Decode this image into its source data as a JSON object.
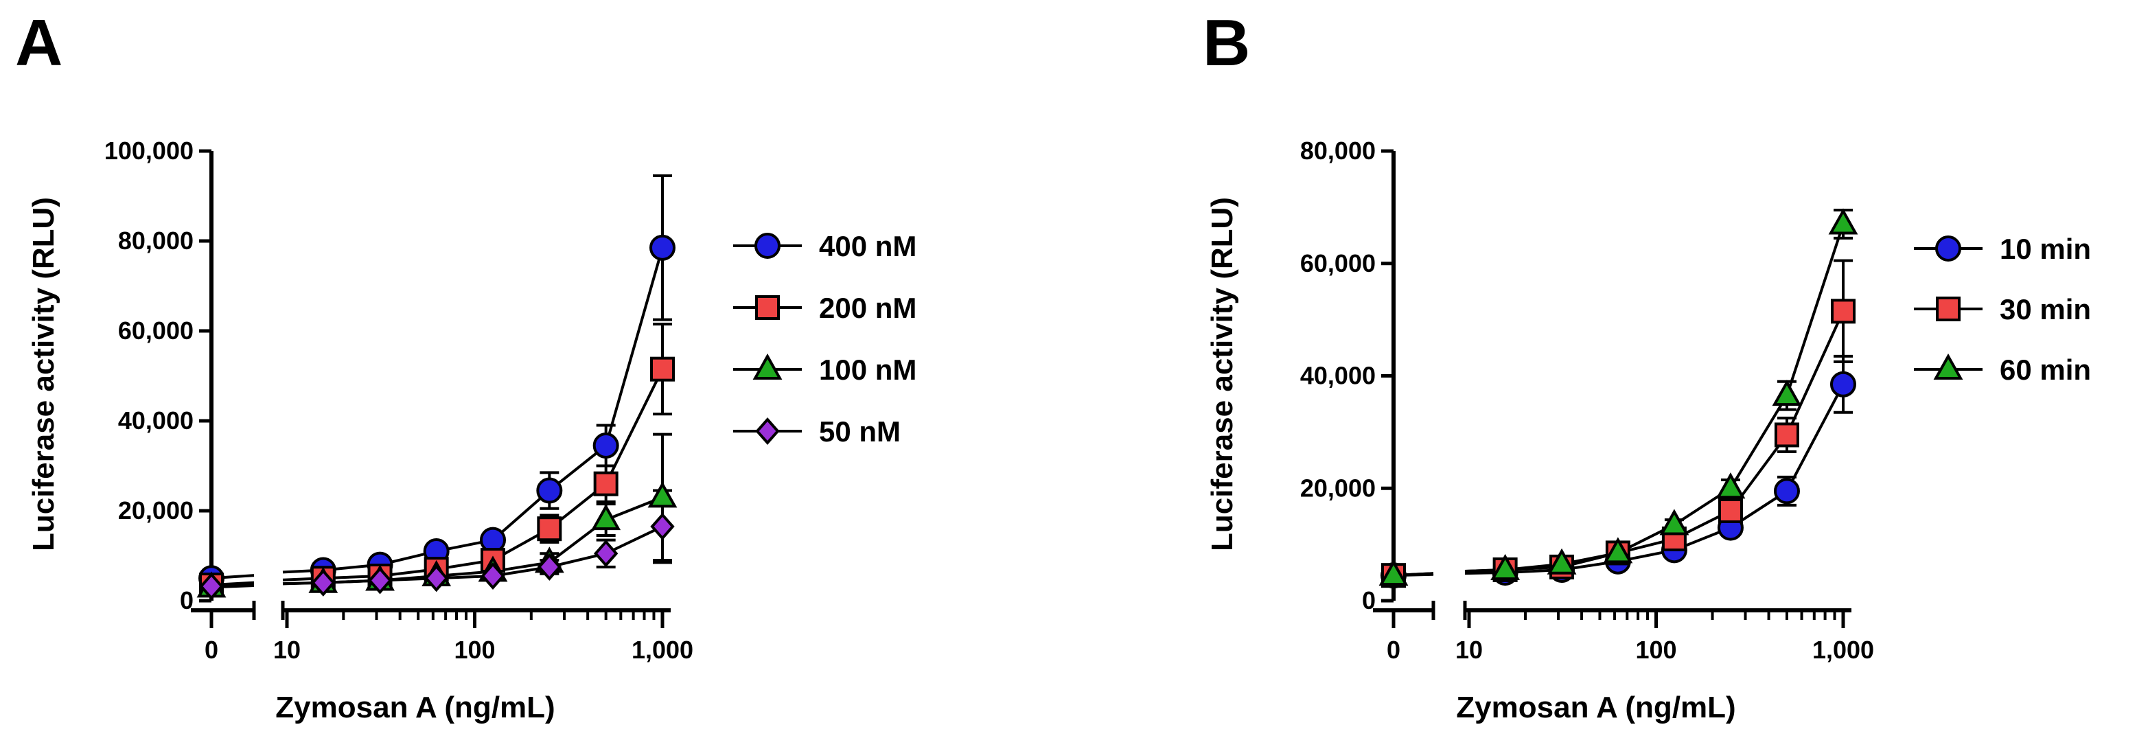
{
  "chart_data": [
    {
      "panel": "A",
      "type": "line",
      "title": "",
      "xlabel": "Zymosan A (ng/mL)",
      "ylabel": "Luciferase activity (RLU)",
      "x_scale": "log10 with broken axis (zero shown separately)",
      "x_ticks": [
        0,
        10,
        100,
        1000
      ],
      "x_tick_labels": [
        "0",
        "10",
        "100",
        "1,000"
      ],
      "ylim": [
        0,
        100000
      ],
      "y_ticks": [
        0,
        20000,
        40000,
        60000,
        80000,
        100000
      ],
      "y_tick_labels": [
        "0",
        "20,000",
        "40,000",
        "60,000",
        "80,000",
        "100,000"
      ],
      "x": [
        0,
        15.6,
        31.3,
        62.5,
        125,
        250,
        500,
        1000
      ],
      "series": [
        {
          "name": "400 nM",
          "marker": "circle",
          "color": "#1f1fe0",
          "values": [
            5000,
            6800,
            8000,
            11000,
            13500,
            24500,
            34500,
            78500
          ],
          "errors": [
            800,
            800,
            800,
            1000,
            1500,
            4000,
            4500,
            16000
          ]
        },
        {
          "name": "200 nM",
          "marker": "square",
          "color": "#ef4444",
          "values": [
            3500,
            5000,
            5500,
            7000,
            9000,
            16000,
            26000,
            51500
          ],
          "errors": [
            600,
            600,
            700,
            800,
            1000,
            3000,
            4000,
            10000
          ]
        },
        {
          "name": "100 nM",
          "marker": "triangle",
          "color": "#1faa1f",
          "values": [
            3000,
            4000,
            4500,
            5500,
            6500,
            8500,
            18000,
            23000
          ],
          "errors": [
            500,
            500,
            600,
            700,
            900,
            2000,
            3500,
            14000
          ]
        },
        {
          "name": "50 nM",
          "marker": "diamond",
          "color": "#9b30d9",
          "values": [
            3200,
            4000,
            4500,
            5000,
            5500,
            7500,
            10500,
            16500
          ],
          "errors": [
            500,
            500,
            600,
            600,
            800,
            1500,
            3000,
            8000
          ]
        }
      ],
      "legend": "right"
    },
    {
      "panel": "B",
      "type": "line",
      "title": "",
      "xlabel": "Zymosan A (ng/mL)",
      "ylabel": "Luciferase activity (RLU)",
      "x_scale": "log10 with broken axis (zero shown separately)",
      "x_ticks": [
        0,
        10,
        100,
        1000
      ],
      "x_tick_labels": [
        "0",
        "10",
        "100",
        "1,000"
      ],
      "ylim": [
        0,
        80000
      ],
      "y_ticks": [
        0,
        20000,
        40000,
        60000,
        80000
      ],
      "y_tick_labels": [
        "0",
        "20,000",
        "40,000",
        "60,000",
        "80,000"
      ],
      "x": [
        0,
        15.6,
        31.3,
        62.5,
        125,
        250,
        500,
        1000
      ],
      "series": [
        {
          "name": "10 min",
          "marker": "circle",
          "color": "#1f1fe0",
          "values": [
            4500,
            5000,
            5500,
            7000,
            9000,
            13000,
            19500,
            38500
          ],
          "errors": [
            500,
            500,
            600,
            700,
            800,
            1200,
            2500,
            5000
          ]
        },
        {
          "name": "30 min",
          "marker": "square",
          "color": "#ef4444",
          "values": [
            4500,
            5500,
            6000,
            8500,
            11000,
            16000,
            29500,
            51500
          ],
          "errors": [
            500,
            500,
            600,
            700,
            900,
            1500,
            3000,
            9000
          ]
        },
        {
          "name": "60 min",
          "marker": "triangle",
          "color": "#1faa1f",
          "values": [
            4500,
            5500,
            6500,
            8500,
            13500,
            20000,
            36500,
            67000
          ],
          "errors": [
            500,
            500,
            600,
            700,
            900,
            1500,
            2500,
            2500
          ]
        }
      ],
      "legend": "right"
    }
  ],
  "panels": {
    "A": {
      "label": "A"
    },
    "B": {
      "label": "B"
    }
  }
}
